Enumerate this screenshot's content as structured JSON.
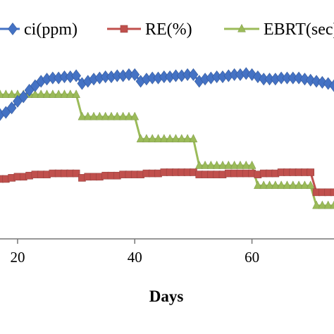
{
  "chart_data": {
    "type": "line",
    "xlabel": "Days",
    "ylabel": "",
    "xlim": [
      17,
      74
    ],
    "ylim": [
      0,
      100
    ],
    "x_ticks": [
      20,
      40,
      60
    ],
    "grid": false,
    "legend_position": "top",
    "series": [
      {
        "name": "ci(ppm)",
        "color": "#4472C4",
        "marker": "diamond",
        "points": [
          [
            17,
            56
          ],
          [
            18,
            57
          ],
          [
            19,
            59
          ],
          [
            20,
            62
          ],
          [
            21,
            64
          ],
          [
            22,
            67
          ],
          [
            23,
            69
          ],
          [
            24,
            71
          ],
          [
            25,
            72
          ],
          [
            26,
            72.5
          ],
          [
            27,
            72.5
          ],
          [
            28,
            73
          ],
          [
            29,
            73
          ],
          [
            30,
            73.5
          ],
          [
            31,
            70
          ],
          [
            32,
            71
          ],
          [
            33,
            72
          ],
          [
            34,
            72.5
          ],
          [
            35,
            73
          ],
          [
            36,
            73
          ],
          [
            37,
            73.5
          ],
          [
            38,
            73.5
          ],
          [
            39,
            74
          ],
          [
            40,
            74
          ],
          [
            41,
            71
          ],
          [
            42,
            72
          ],
          [
            43,
            72.5
          ],
          [
            44,
            72.5
          ],
          [
            45,
            73
          ],
          [
            46,
            73
          ],
          [
            47,
            73.5
          ],
          [
            48,
            73.5
          ],
          [
            49,
            74
          ],
          [
            50,
            74
          ],
          [
            51,
            71
          ],
          [
            52,
            72
          ],
          [
            53,
            72.5
          ],
          [
            54,
            73
          ],
          [
            55,
            73
          ],
          [
            56,
            73.5
          ],
          [
            57,
            74
          ],
          [
            58,
            74
          ],
          [
            59,
            74.5
          ],
          [
            60,
            74
          ],
          [
            61,
            73
          ],
          [
            62,
            72
          ],
          [
            63,
            72
          ],
          [
            64,
            72
          ],
          [
            65,
            72.5
          ],
          [
            66,
            72.5
          ],
          [
            67,
            72.5
          ],
          [
            68,
            72.5
          ],
          [
            69,
            72
          ],
          [
            70,
            71.5
          ],
          [
            71,
            71
          ],
          [
            72,
            70.5
          ],
          [
            73,
            70
          ],
          [
            74,
            69
          ]
        ]
      },
      {
        "name": "RE(%)",
        "color": "#C0504D",
        "marker": "square",
        "points": [
          [
            17,
            27
          ],
          [
            18,
            27
          ],
          [
            19,
            27.5
          ],
          [
            20,
            28
          ],
          [
            21,
            28
          ],
          [
            22,
            28.5
          ],
          [
            23,
            29
          ],
          [
            24,
            29
          ],
          [
            25,
            29
          ],
          [
            26,
            29.5
          ],
          [
            27,
            29.5
          ],
          [
            28,
            29.5
          ],
          [
            29,
            29.5
          ],
          [
            30,
            29.5
          ],
          [
            31,
            27.5
          ],
          [
            32,
            28
          ],
          [
            33,
            28
          ],
          [
            34,
            28
          ],
          [
            35,
            28.5
          ],
          [
            36,
            28.5
          ],
          [
            37,
            28.5
          ],
          [
            38,
            29
          ],
          [
            39,
            29
          ],
          [
            40,
            29
          ],
          [
            41,
            29
          ],
          [
            42,
            29.5
          ],
          [
            43,
            29.5
          ],
          [
            44,
            29.5
          ],
          [
            45,
            30
          ],
          [
            46,
            30
          ],
          [
            47,
            30
          ],
          [
            48,
            30
          ],
          [
            49,
            30
          ],
          [
            50,
            30
          ],
          [
            51,
            29
          ],
          [
            52,
            29
          ],
          [
            53,
            29
          ],
          [
            54,
            29
          ],
          [
            55,
            29
          ],
          [
            56,
            29.5
          ],
          [
            57,
            29.5
          ],
          [
            58,
            29.5
          ],
          [
            59,
            29.5
          ],
          [
            60,
            29.5
          ],
          [
            61,
            29
          ],
          [
            62,
            29.5
          ],
          [
            63,
            29.5
          ],
          [
            64,
            29.5
          ],
          [
            65,
            30
          ],
          [
            66,
            30
          ],
          [
            67,
            30
          ],
          [
            68,
            30
          ],
          [
            69,
            30
          ],
          [
            70,
            30
          ],
          [
            71,
            21
          ],
          [
            72,
            21
          ],
          [
            73,
            21
          ],
          [
            74,
            21
          ]
        ]
      },
      {
        "name": "EBRT(sec)",
        "color": "#9BBB59",
        "marker": "triangle",
        "points": [
          [
            17,
            65
          ],
          [
            18,
            65
          ],
          [
            19,
            65
          ],
          [
            20,
            65
          ],
          [
            21,
            65
          ],
          [
            22,
            65
          ],
          [
            23,
            65
          ],
          [
            24,
            65
          ],
          [
            25,
            65
          ],
          [
            26,
            65
          ],
          [
            27,
            65
          ],
          [
            28,
            65
          ],
          [
            29,
            65
          ],
          [
            30,
            65
          ],
          [
            31,
            55
          ],
          [
            32,
            55
          ],
          [
            33,
            55
          ],
          [
            34,
            55
          ],
          [
            35,
            55
          ],
          [
            36,
            55
          ],
          [
            37,
            55
          ],
          [
            38,
            55
          ],
          [
            39,
            55
          ],
          [
            40,
            55
          ],
          [
            41,
            45
          ],
          [
            42,
            45
          ],
          [
            43,
            45
          ],
          [
            44,
            45
          ],
          [
            45,
            45
          ],
          [
            46,
            45
          ],
          [
            47,
            45
          ],
          [
            48,
            45
          ],
          [
            49,
            45
          ],
          [
            50,
            45
          ],
          [
            51,
            33
          ],
          [
            52,
            33
          ],
          [
            53,
            33
          ],
          [
            54,
            33
          ],
          [
            55,
            33
          ],
          [
            56,
            33
          ],
          [
            57,
            33
          ],
          [
            58,
            33
          ],
          [
            59,
            33
          ],
          [
            60,
            33
          ],
          [
            61,
            24
          ],
          [
            62,
            24
          ],
          [
            63,
            24
          ],
          [
            64,
            24
          ],
          [
            65,
            24
          ],
          [
            66,
            24
          ],
          [
            67,
            24
          ],
          [
            68,
            24
          ],
          [
            69,
            24
          ],
          [
            70,
            24
          ],
          [
            71,
            15
          ],
          [
            72,
            15
          ],
          [
            73,
            15
          ],
          [
            74,
            15
          ]
        ]
      }
    ]
  }
}
